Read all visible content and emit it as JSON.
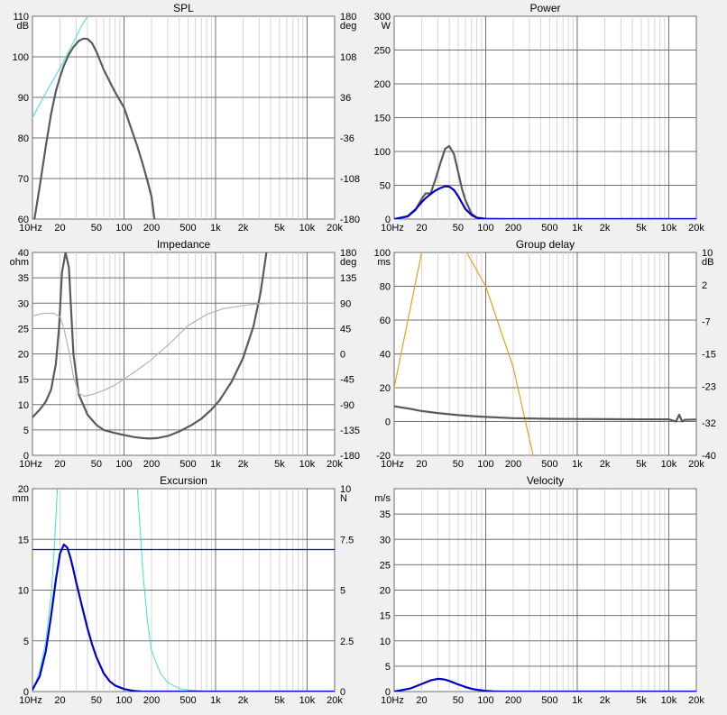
{
  "x_ticks": [
    "10Hz",
    "20",
    "50",
    "100",
    "200",
    "500",
    "1k",
    "2k",
    "5k",
    "10k",
    "20k"
  ],
  "x_tick_freqs": [
    10,
    20,
    50,
    100,
    200,
    500,
    1000,
    2000,
    5000,
    10000,
    20000
  ],
  "chart_data": [
    {
      "id": "spl",
      "type": "line",
      "title": "SPL",
      "xscale": "log",
      "xlim": [
        10,
        20000
      ],
      "grid": true,
      "left_axis": {
        "unit": "dB",
        "lim": [
          60,
          110
        ],
        "ticks": [
          "110",
          "100",
          "90",
          "80",
          "70",
          "60"
        ],
        "tick_values": [
          110,
          100,
          90,
          80,
          70,
          60
        ]
      },
      "right_axis": {
        "unit": "deg",
        "lim": [
          -180,
          180
        ],
        "ticks": [
          "180",
          "108",
          "36",
          "-36",
          "-108",
          "-180"
        ],
        "tick_values": [
          180,
          108,
          36,
          -36,
          -108,
          -180
        ]
      },
      "series": [
        {
          "axis": "left",
          "color": "#5a5a5a",
          "width": 2.2,
          "x": [
            10.5,
            12,
            14,
            16,
            18,
            20,
            22,
            25,
            28,
            32,
            36,
            40,
            45,
            50,
            60,
            70,
            80,
            90,
            100,
            120,
            140,
            160,
            180,
            200,
            215
          ],
          "y": [
            60,
            68,
            78,
            86,
            91.5,
            95,
            97.8,
            100.6,
            102.4,
            103.9,
            104.5,
            104.4,
            103.3,
            101.3,
            96.8,
            93.8,
            91.3,
            89.3,
            87.5,
            82.3,
            77.9,
            73.6,
            69.5,
            65.5,
            60
          ]
        },
        {
          "axis": "left",
          "color": "#40e0d0",
          "width": 1,
          "x": [
            10,
            13,
            17,
            22,
            28,
            34,
            40
          ],
          "y": [
            85,
            89.8,
            94.5,
            99,
            103.6,
            107.5,
            110
          ]
        }
      ]
    },
    {
      "id": "power",
      "type": "line",
      "title": "Power",
      "xscale": "log",
      "xlim": [
        10,
        20000
      ],
      "grid": true,
      "left_axis": {
        "unit": "W",
        "lim": [
          0,
          300
        ],
        "ticks": [
          "300",
          "250",
          "200",
          "150",
          "100",
          "50",
          "0"
        ],
        "tick_values": [
          300,
          250,
          200,
          150,
          100,
          50,
          0
        ]
      },
      "series": [
        {
          "axis": "left",
          "color": "#5a5a5a",
          "width": 2.2,
          "x": [
            10,
            14,
            17,
            20,
            22,
            25,
            28,
            32,
            36,
            40,
            45,
            50,
            55,
            60,
            70,
            80,
            100,
            150,
            20000
          ],
          "y": [
            0,
            4,
            13,
            30,
            38,
            38,
            57,
            83,
            104,
            108,
            96,
            70,
            45,
            28,
            8,
            2,
            0.3,
            0,
            0
          ]
        },
        {
          "axis": "left",
          "color": "#0000cc",
          "width": 2.2,
          "x": [
            10,
            14,
            17,
            20,
            22,
            25,
            28,
            32,
            36,
            40,
            45,
            50,
            55,
            60,
            70,
            80,
            100,
            150,
            20000
          ],
          "y": [
            0,
            4,
            14,
            25,
            31,
            37,
            42,
            46,
            48.5,
            48,
            43,
            34,
            24,
            15,
            6,
            2,
            0.4,
            0,
            0
          ]
        }
      ]
    },
    {
      "id": "impedance",
      "type": "line",
      "title": "Impedance",
      "xscale": "log",
      "xlim": [
        10,
        20000
      ],
      "grid": true,
      "left_axis": {
        "unit": "ohm",
        "lim": [
          0,
          40
        ],
        "ticks": [
          "40",
          "35",
          "30",
          "25",
          "20",
          "15",
          "10",
          "5",
          "0"
        ],
        "tick_values": [
          40,
          35,
          30,
          25,
          20,
          15,
          10,
          5,
          0
        ]
      },
      "right_axis": {
        "unit": "deg",
        "lim": [
          -180,
          180
        ],
        "ticks": [
          "180",
          "135",
          "90",
          "45",
          "0",
          "-45",
          "-90",
          "-135",
          "-180"
        ],
        "tick_values": [
          180,
          135,
          90,
          45,
          0,
          -45,
          -90,
          -135,
          -180
        ]
      },
      "series": [
        {
          "axis": "left",
          "color": "#5a5a5a",
          "width": 2.2,
          "x": [
            10,
            12,
            14,
            16,
            18,
            19.5,
            21,
            23,
            25,
            28,
            32,
            40,
            50,
            60,
            80,
            100,
            130,
            160,
            190,
            230,
            300,
            400,
            550,
            700,
            900,
            1100,
            1500,
            2000,
            2600,
            3100,
            3600
          ],
          "y": [
            7.5,
            9,
            10.6,
            13,
            18,
            25,
            36,
            40,
            37,
            20,
            12,
            8,
            6,
            5,
            4.4,
            4,
            3.6,
            3.4,
            3.3,
            3.4,
            3.8,
            4.7,
            6,
            7.2,
            9,
            10.8,
            14.5,
            19.2,
            25.5,
            32,
            40
          ]
        },
        {
          "axis": "right",
          "color": "#b4b4b4",
          "width": 1.2,
          "x": [
            10,
            13,
            17,
            20,
            22,
            25,
            28,
            32,
            37,
            45,
            60,
            80,
            100,
            150,
            200,
            300,
            500,
            800,
            1200,
            2000,
            3000,
            5000,
            10000,
            20000
          ],
          "y": [
            67,
            72,
            72,
            66,
            45,
            5,
            -40,
            -70,
            -75,
            -72,
            -65,
            -55,
            -45,
            -25,
            -10,
            15,
            50,
            70,
            80,
            86,
            89,
            90,
            90,
            90
          ]
        }
      ]
    },
    {
      "id": "group-delay",
      "type": "line",
      "title": "Group delay",
      "xscale": "log",
      "xlim": [
        10,
        20000
      ],
      "grid": true,
      "left_axis": {
        "unit": "ms",
        "lim": [
          -20,
          100
        ],
        "ticks": [
          "100",
          "80",
          "60",
          "40",
          "20",
          "0",
          "-20"
        ],
        "tick_values": [
          100,
          80,
          60,
          40,
          20,
          0,
          -20
        ]
      },
      "right_axis": {
        "unit": "dB",
        "lim": [
          -40,
          10
        ],
        "ticks": [
          "10",
          "2",
          "-7",
          "-15",
          "-23",
          "-32",
          "-40"
        ],
        "tick_values": [
          10,
          2,
          -7,
          -15,
          -23,
          -32,
          -40
        ]
      },
      "series": [
        {
          "axis": "left",
          "color": "#e8a020",
          "width": 1.2,
          "x": [
            10,
            20
          ],
          "y": [
            20,
            100
          ]
        },
        {
          "axis": "left",
          "color": "#e8a020",
          "width": 1.2,
          "x": [
            62,
            100,
            200,
            330
          ],
          "y": [
            100,
            80,
            32,
            -20
          ]
        },
        {
          "axis": "left",
          "color": "#5a5a5a",
          "width": 2.2,
          "x": [
            10,
            15,
            20,
            30,
            50,
            80,
            100,
            200,
            500,
            1000,
            2000,
            5000,
            10000,
            12000,
            13000,
            14000,
            15000,
            20000
          ],
          "y": [
            9,
            7.5,
            6.2,
            5,
            3.8,
            3,
            2.7,
            2,
            1.6,
            1.5,
            1.4,
            1.3,
            1.3,
            0,
            4,
            0,
            1,
            1.2
          ]
        }
      ]
    },
    {
      "id": "excursion",
      "type": "line",
      "title": "Excursion",
      "xscale": "log",
      "xlim": [
        10,
        20000
      ],
      "grid": true,
      "left_axis": {
        "unit": "mm",
        "lim": [
          0,
          20
        ],
        "ticks": [
          "20",
          "15",
          "10",
          "5",
          "0"
        ],
        "tick_values": [
          20,
          15,
          10,
          5,
          0
        ]
      },
      "right_axis": {
        "unit": "N",
        "lim": [
          0,
          10
        ],
        "ticks": [
          "10",
          "7.5",
          "5",
          "2.5",
          "0"
        ],
        "tick_values": [
          10,
          7.5,
          5,
          2.5,
          0
        ]
      },
      "series": [
        {
          "axis": "left",
          "color": "#40e0d0",
          "width": 1,
          "x": [
            10,
            12,
            14,
            16,
            17,
            18,
            18.7
          ],
          "y": [
            0,
            2,
            5,
            9.5,
            13,
            17,
            20
          ]
        },
        {
          "axis": "left",
          "color": "#40e0d0",
          "width": 1,
          "x": [
            140,
            150,
            160,
            180,
            200,
            250,
            300,
            400,
            500,
            700,
            1000
          ],
          "y": [
            20,
            16,
            12,
            7,
            4,
            1.8,
            0.9,
            0.3,
            0.15,
            0.05,
            0
          ]
        },
        {
          "axis": "left",
          "color": "#0000cc",
          "width": 2.2,
          "x": [
            10,
            12,
            14,
            16,
            18,
            20,
            22,
            24,
            26,
            28,
            30,
            35,
            40,
            45,
            50,
            60,
            70,
            80,
            100,
            130,
            160,
            20000
          ],
          "y": [
            0.2,
            1.5,
            4,
            7.5,
            11,
            13.6,
            14.5,
            14.2,
            13.2,
            12,
            10.8,
            8.3,
            6.2,
            4.6,
            3.4,
            1.8,
            1,
            0.6,
            0.25,
            0.05,
            0,
            0
          ]
        },
        {
          "axis": "left",
          "color": "#1010a0",
          "width": 1.2,
          "x": [
            10,
            20000
          ],
          "y": [
            14,
            14
          ]
        }
      ]
    },
    {
      "id": "velocity",
      "type": "line",
      "title": "Velocity",
      "xscale": "log",
      "xlim": [
        10,
        20000
      ],
      "grid": true,
      "left_axis": {
        "unit": "m/s",
        "lim": [
          0,
          40
        ],
        "ticks": [
          "35",
          "30",
          "25",
          "20",
          "15",
          "10",
          "5",
          "0"
        ],
        "tick_values": [
          35,
          30,
          25,
          20,
          15,
          10,
          5,
          0
        ]
      },
      "series": [
        {
          "axis": "left",
          "color": "#0000cc",
          "width": 2.2,
          "x": [
            10,
            15,
            20,
            25,
            30,
            35,
            40,
            50,
            60,
            70,
            80,
            100,
            120,
            150,
            20000
          ],
          "y": [
            0,
            0.6,
            1.5,
            2.2,
            2.5,
            2.4,
            2.1,
            1.4,
            0.9,
            0.55,
            0.35,
            0.15,
            0.05,
            0,
            0
          ]
        }
      ]
    }
  ]
}
